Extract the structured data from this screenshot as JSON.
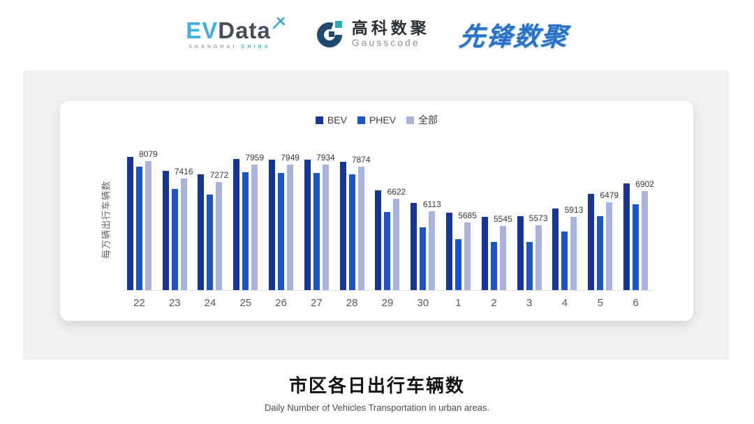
{
  "header": {
    "evdata": {
      "ev": "EV",
      "data": "Data",
      "sub_left": "SHANGHAI",
      "sub_right": "CHINA"
    },
    "gausscode": {
      "cn": "高科数聚",
      "en": "Gausscode"
    },
    "xianfeng": {
      "text": "先锋数聚"
    }
  },
  "chart_data": {
    "type": "bar",
    "title": "市区各日出行车辆数",
    "xlabel": "",
    "ylabel": "每万辆出行车辆数",
    "categories": [
      "22",
      "23",
      "24",
      "25",
      "26",
      "27",
      "28",
      "29",
      "30",
      "1",
      "2",
      "3",
      "4",
      "5",
      "6"
    ],
    "series": [
      {
        "key": "bev",
        "name": "BEV",
        "color": "#16359a",
        "show_labels": false,
        "values": [
          8235,
          7700,
          7560,
          8170,
          8145,
          8125,
          8065,
          6935,
          6445,
          6075,
          5910,
          5945,
          6240,
          6800,
          7220
        ]
      },
      {
        "key": "phev",
        "name": "PHEV",
        "color": "#1b55c8",
        "show_labels": false,
        "values": [
          7855,
          6990,
          6780,
          7660,
          7630,
          7625,
          7560,
          6100,
          5510,
          5030,
          4920,
          4920,
          5345,
          5925,
          6390
        ]
      },
      {
        "key": "all",
        "name": "全部",
        "color": "#a9b3df",
        "show_labels": true,
        "values": [
          8079,
          7416,
          7272,
          7959,
          7949,
          7934,
          7874,
          6622,
          6113,
          5685,
          5545,
          5573,
          5913,
          6479,
          6902
        ]
      }
    ],
    "ylim": [
      3050,
      8600
    ],
    "grid": false,
    "legend_position": "top",
    "notes": "value labels shown only for 全部 series; BEV/PHEV values estimated from bar heights"
  },
  "colors": {
    "panel_bg": "#f0f0f1",
    "card_bg": "#ffffff",
    "baseline": "#e4e4e8",
    "tick_text": "#585858",
    "evdata_blue": "#41b0e0",
    "evdata_dark": "#474e5a",
    "gauss_navy": "#1d4a6e",
    "gauss_teal": "#2ea7b0",
    "xianfeng_blue": "#2a72c9"
  },
  "footer": {
    "title": "市区各日出行车辆数",
    "subtitle": "Daily Number of Vehicles Transportation in urban areas."
  }
}
